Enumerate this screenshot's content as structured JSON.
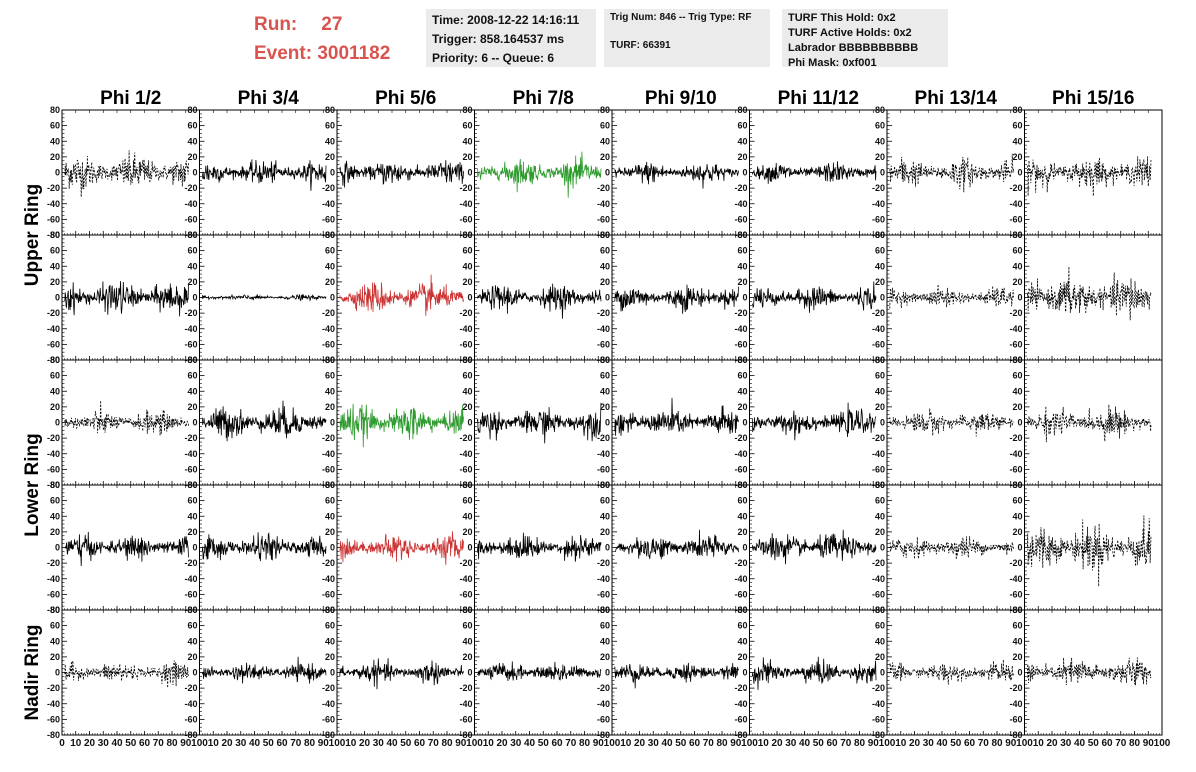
{
  "header": {
    "run_label": "Run:",
    "run_value": "27",
    "event_label": "Event:",
    "event_value": "3001182",
    "time": "Time: 2008-12-22 14:16:11",
    "trigger": "Trigger: 858.164537 ms",
    "priority": "Priority: 6 -- Queue: 6",
    "trig_num": "Trig Num: 846 -- Trig Type: RF",
    "turf": "TURF: 66391",
    "turf_this_hold": "TURF This Hold: 0x2",
    "turf_active_holds": "TURF Active Holds: 0x2",
    "labrador": "Labrador BBBBBBBBBB",
    "phi_mask": "Phi Mask: 0xf001"
  },
  "colors": {
    "run_text": "#d9534f",
    "info_box_bg": "#ebebeb",
    "trace_normal": "#000000",
    "trace_green": "#2e9b2e",
    "trace_red": "#cc3333"
  },
  "chart_data": {
    "type": "line",
    "columns": [
      "Phi 1/2",
      "Phi 3/4",
      "Phi 5/6",
      "Phi 7/8",
      "Phi 9/10",
      "Phi 11/12",
      "Phi 13/14",
      "Phi 15/16"
    ],
    "ring_labels": [
      "Upper Ring",
      "Lower Ring",
      "Nadir Ring"
    ],
    "panel_rows": 5,
    "xlim": [
      0,
      100
    ],
    "ylim": [
      -80,
      80
    ],
    "y_ticks": [
      -80,
      -60,
      -40,
      -20,
      0,
      20,
      40,
      60,
      80
    ],
    "x_ticks": [
      0,
      10,
      20,
      30,
      40,
      50,
      60,
      70,
      80,
      90,
      100
    ],
    "x_tick_labels_first": [
      "0",
      "10",
      "20",
      "30",
      "40",
      "50",
      "60",
      "70",
      "80",
      "90",
      "100"
    ],
    "x_tick_labels_other": [
      "10",
      "20",
      "30",
      "40",
      "50",
      "60",
      "70",
      "80",
      "90",
      "100"
    ],
    "panel_amplitudes": [
      [
        20,
        13,
        14,
        15,
        12,
        11,
        16,
        18
      ],
      [
        18,
        3,
        17,
        14,
        14,
        13,
        11,
        24
      ],
      [
        13,
        18,
        19,
        16,
        16,
        14,
        13,
        16
      ],
      [
        14,
        14,
        14,
        14,
        14,
        16,
        12,
        26
      ],
      [
        12,
        10,
        12,
        11,
        11,
        13,
        11,
        16
      ]
    ],
    "panel_styles": [
      [
        "dashed",
        "solid",
        "solid",
        "green",
        "solid",
        "solid",
        "dashed",
        "dashed"
      ],
      [
        "solid",
        "solid",
        "red",
        "solid",
        "solid",
        "solid",
        "dashed",
        "dashed"
      ],
      [
        "dashed",
        "solid",
        "green",
        "solid",
        "solid",
        "solid",
        "dashed",
        "dashed"
      ],
      [
        "solid",
        "solid",
        "red",
        "solid",
        "solid",
        "solid",
        "dashed",
        "dashed"
      ],
      [
        "dashed",
        "solid",
        "solid",
        "solid",
        "solid",
        "solid",
        "dashed",
        "dashed"
      ]
    ]
  }
}
